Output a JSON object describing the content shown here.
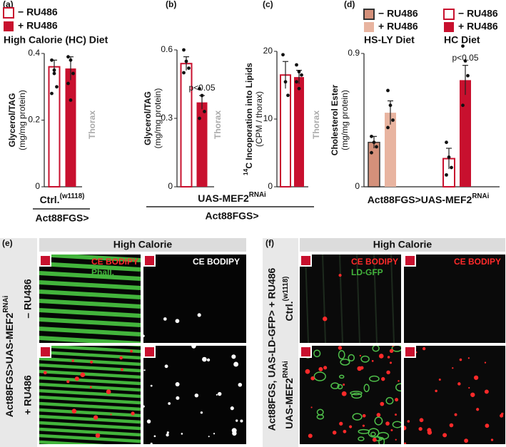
{
  "chart_data": [
    {
      "type": "bar",
      "panel": "(a)",
      "legend_title": "High Calorie (HC) Diet",
      "ylabel": "Glycerol/TAG",
      "ylabel_sub": "(mg/mg protein)",
      "side_label": "Thorax",
      "ylim": [
        0,
        0.4
      ],
      "yticks": [
        0,
        0.2,
        0.4
      ],
      "x_group_label": {
        "text": "Ctrl.",
        "sup": "(w1118)"
      },
      "x_driver_label": "Act88FGS>",
      "series": [
        {
          "name": "− RU486",
          "color": "#c8102e",
          "style": "open",
          "values": [
            0.36
          ],
          "errors": [
            0.02
          ],
          "points": [
            0.38,
            0.34,
            0.3,
            0.28,
            0.35
          ]
        },
        {
          "name": "+ RU486",
          "color": "#c8102e",
          "style": "filled",
          "values": [
            0.355
          ],
          "errors": [
            0.035
          ],
          "points": [
            0.39,
            0.38,
            0.34,
            0.31,
            0.26
          ]
        }
      ]
    },
    {
      "type": "bar",
      "panel": "(b)",
      "ylabel": "Glycerol/TAG",
      "ylabel_sub": "(mg/mg protein)",
      "side_label": "Thorax",
      "ylim": [
        0,
        0.6
      ],
      "yticks": [
        0,
        0.3,
        0.6
      ],
      "x_group_label": {
        "text": "UAS-MEF2",
        "sup": "RNAi"
      },
      "x_driver_label": "Act88FGS>",
      "series": [
        {
          "color": "#c8102e",
          "style": "open",
          "values": [
            0.54
          ],
          "errors": [
            0.03
          ],
          "points": [
            0.6,
            0.55,
            0.52,
            0.5
          ]
        },
        {
          "color": "#c8102e",
          "style": "filled",
          "values": [
            0.37
          ],
          "errors": [
            0.03
          ],
          "points": [
            0.43,
            0.4,
            0.33,
            0.3
          ],
          "annotation": "p<0.05"
        }
      ]
    },
    {
      "type": "bar",
      "panel": "(c)",
      "ylabel": {
        "pre": "14",
        "text": "C Incoporation into Lipids"
      },
      "ylabel_sub": "(CPM / thorax)",
      "side_label": "Thorax",
      "ylim": [
        0,
        20
      ],
      "yticks": [
        0,
        10,
        20
      ],
      "series": [
        {
          "color": "#c8102e",
          "style": "open",
          "values": [
            16.5
          ],
          "errors": [
            2
          ],
          "points": [
            19.5,
            15.5,
            13.5
          ]
        },
        {
          "color": "#c8102e",
          "style": "filled",
          "values": [
            16.2
          ],
          "errors": [
            1
          ],
          "points": [
            18,
            17,
            16.5,
            15.5,
            14.5
          ]
        }
      ]
    },
    {
      "type": "bar",
      "panel": "(d)",
      "ylabel": "Cholesterol Ester",
      "ylabel_sub": "(mg/mg protein)",
      "ylim": [
        0,
        0.9
      ],
      "yticks": [
        0,
        0.9
      ],
      "x_group_label": {
        "text": "Act88FGS>UAS-MEF2",
        "sup": "RNAi"
      },
      "groups": [
        {
          "name": "HS-LY Diet",
          "series": [
            {
              "name": "− RU486",
              "color": "#d4907a",
              "style": "outlined",
              "values": [
                0.3
              ],
              "errors": [
                0.04
              ],
              "points": [
                0.34,
                0.3,
                0.27,
                0.23
              ]
            },
            {
              "name": "+ RU486",
              "color": "#e8b4a0",
              "style": "filled",
              "values": [
                0.5
              ],
              "errors": [
                0.08
              ],
              "points": [
                0.65,
                0.55,
                0.45,
                0.4
              ]
            }
          ]
        },
        {
          "name": "HC Diet",
          "series": [
            {
              "name": "− RU486",
              "color": "#c8102e",
              "style": "open",
              "values": [
                0.19
              ],
              "errors": [
                0.07
              ],
              "points": [
                0.3,
                0.2,
                0.13,
                0.08
              ]
            },
            {
              "name": "+ RU486",
              "color": "#c8102e",
              "style": "filled",
              "values": [
                0.72
              ],
              "errors": [
                0.1
              ],
              "points": [
                0.95,
                0.85,
                0.75,
                0.55
              ],
              "annotation": "p<0.05"
            }
          ]
        }
      ]
    }
  ],
  "panel_e": {
    "label": "(e)",
    "header": "High Calorie",
    "row_title": {
      "text": "Act88FGS>UAS-MEF2",
      "sup": "RNAi"
    },
    "rows": [
      "– RU486",
      "+ RU486"
    ],
    "stains": [
      [
        "CE BODIPY",
        "Phall."
      ],
      [
        "CE BODIPY"
      ]
    ]
  },
  "panel_f": {
    "label": "(f)",
    "header": "High Calorie",
    "row_title": "Act88FGS, UAS-LD-GFP> + RU486",
    "rows": [
      {
        "text": "Ctrl.",
        "sup": "(w1118)"
      },
      {
        "text": "UAS-MEF2",
        "sup": "RNAi"
      }
    ],
    "stains": [
      [
        "CE BODIPY",
        "LD-GFP"
      ],
      [
        "CE BODIPY"
      ]
    ]
  }
}
